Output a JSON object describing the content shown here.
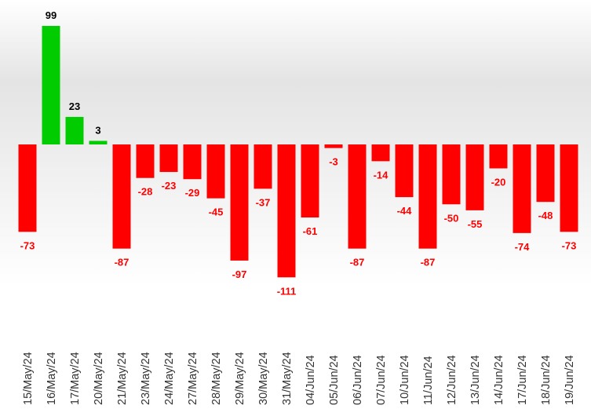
{
  "chart_data": {
    "type": "bar",
    "categories": [
      "15/May/24",
      "16/May/24",
      "17/May/24",
      "20/May/24",
      "21/May/24",
      "23/May/24",
      "24/May/24",
      "27/May/24",
      "28/May/24",
      "29/May/24",
      "30/May/24",
      "31/May/24",
      "04/Jun/24",
      "05/Jun/24",
      "06/Jun/24",
      "07/Jun/24",
      "10/Jun/24",
      "11/Jun/24",
      "12/Jun/24",
      "13/Jun/24",
      "14/Jun/24",
      "17/Jun/24",
      "18/Jun/24",
      "19/Jun/24"
    ],
    "values": [
      -73,
      99,
      23,
      3,
      -87,
      -28,
      -23,
      -29,
      -45,
      -97,
      -37,
      -111,
      -61,
      -3,
      -87,
      -14,
      -44,
      -87,
      -50,
      -55,
      -20,
      -74,
      -48,
      -73
    ],
    "positive_color": "#00cc00",
    "negative_color": "#ff0000",
    "ylim": [
      -120,
      120
    ]
  }
}
